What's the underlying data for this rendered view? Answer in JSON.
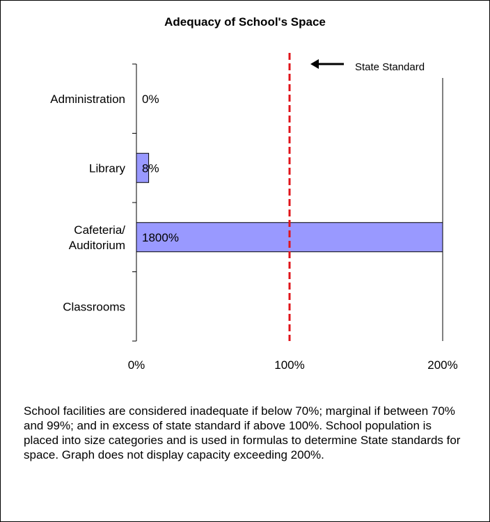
{
  "chart_data": {
    "type": "bar",
    "orientation": "horizontal",
    "title": "Adequacy of School's Space",
    "categories": [
      {
        "lines": [
          "Administration"
        ],
        "value": 0,
        "label": "0%"
      },
      {
        "lines": [
          "Library"
        ],
        "value": 8,
        "label": "8%"
      },
      {
        "lines": [
          "Cafeteria/",
          "Auditorium"
        ],
        "value": 1800,
        "label": "1800%"
      },
      {
        "lines": [
          "Classrooms"
        ],
        "value": null,
        "label": ""
      }
    ],
    "xlim": [
      0,
      200
    ],
    "x_ticks": [
      "0%",
      "100%",
      "200%"
    ],
    "reference_line": {
      "value": 100,
      "label": "State Standard",
      "color": "#e0141b",
      "style": "dashed"
    },
    "bar_color": "#9999ff",
    "grid": false
  },
  "note": "School facilities are considered inadequate if below 70%; marginal if between 70% and 99%; and in excess of state standard if above 100%.  School population is placed into size categories and is used in formulas to determine State standards for space.  Graph does not display capacity exceeding 200%."
}
